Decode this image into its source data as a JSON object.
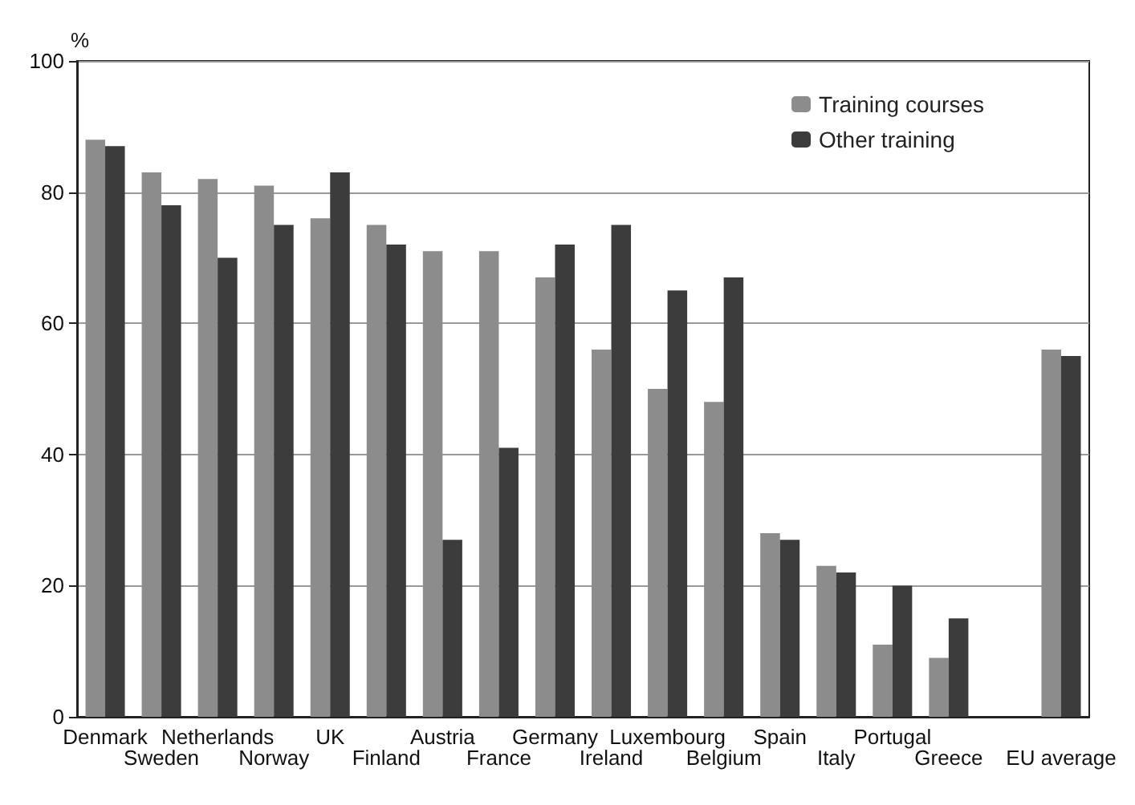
{
  "chart_data": {
    "type": "bar",
    "ylabel": "%",
    "categories": [
      "Denmark",
      "Sweden",
      "Netherlands",
      "Norway",
      "UK",
      "Finland",
      "Austria",
      "France",
      "Germany",
      "Ireland",
      "Luxembourg",
      "Belgium",
      "Spain",
      "Italy",
      "Portugal",
      "Greece",
      null,
      "EU average"
    ],
    "series": [
      {
        "name": "Training courses",
        "color": "#8c8c8c",
        "values": [
          88,
          83,
          82,
          81,
          76,
          75,
          71,
          71,
          67,
          56,
          50,
          48,
          28,
          23,
          11,
          9,
          null,
          56
        ]
      },
      {
        "name": "Other training",
        "color": "#3c3c3c",
        "values": [
          87,
          78,
          70,
          75,
          83,
          72,
          27,
          41,
          72,
          75,
          65,
          67,
          27,
          22,
          20,
          15,
          null,
          55
        ]
      }
    ],
    "ylim": [
      0,
      100
    ],
    "yticks": [
      0,
      20,
      40,
      60,
      80,
      100
    ],
    "grid": "y",
    "legend": "top right"
  }
}
